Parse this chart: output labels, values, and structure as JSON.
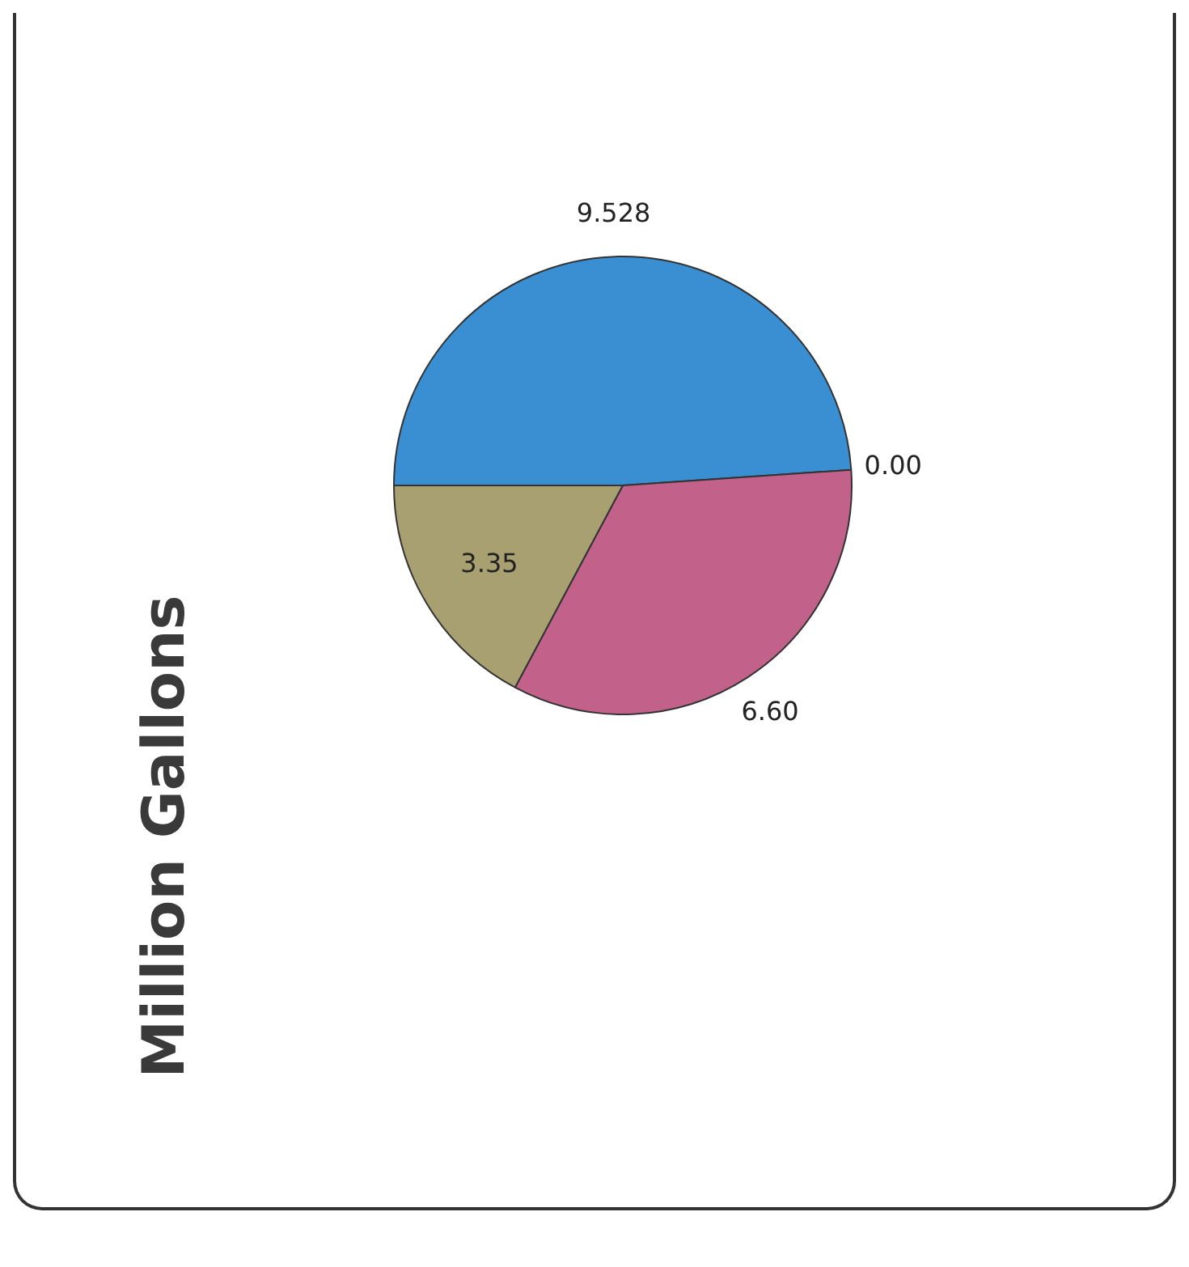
{
  "chart_data": {
    "type": "pie",
    "title": "Million Gallons",
    "categories": [
      null,
      null,
      null,
      null
    ],
    "values": [
      9.528,
      0.0,
      6.6,
      3.35
    ],
    "value_labels": [
      "9.528",
      "0.00",
      "6.60",
      "3.35"
    ],
    "colors": [
      "#3a8fd2",
      "#8064a2",
      "#c2628a",
      "#a8a070"
    ]
  }
}
